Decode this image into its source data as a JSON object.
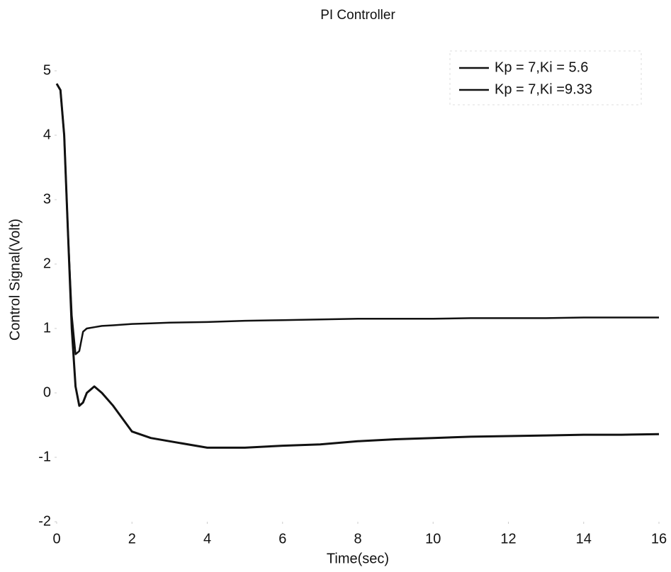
{
  "chart_data": {
    "type": "line",
    "title": "PI Controller",
    "x_label": "Time(sec)",
    "y_label": "Control Signal(Volt)",
    "x": [
      0,
      0.1,
      0.2,
      0.3,
      0.4,
      0.5,
      0.6,
      0.7,
      0.8,
      1.0,
      1.2,
      1.5,
      2,
      2.5,
      3,
      4,
      5,
      6,
      7,
      8,
      9,
      10,
      11,
      12,
      13,
      14,
      15,
      16
    ],
    "series": [
      {
        "name": "Kp = 7,Ki = 5.6",
        "color": "#111111",
        "values": [
          4.8,
          4.7,
          4.0,
          2.5,
          1.2,
          0.6,
          0.65,
          0.95,
          1.0,
          1.02,
          1.04,
          1.05,
          1.07,
          1.08,
          1.09,
          1.1,
          1.12,
          1.13,
          1.14,
          1.15,
          1.15,
          1.15,
          1.16,
          1.16,
          1.16,
          1.17,
          1.17,
          1.17
        ]
      },
      {
        "name": "Kp = 7,Ki =9.33",
        "color": "#111111",
        "values": [
          4.8,
          4.7,
          4.0,
          2.5,
          1.0,
          0.1,
          -0.2,
          -0.15,
          0.0,
          0.1,
          0.0,
          -0.2,
          -0.6,
          -0.7,
          -0.75,
          -0.85,
          -0.85,
          -0.82,
          -0.8,
          -0.75,
          -0.72,
          -0.7,
          -0.68,
          -0.67,
          -0.66,
          -0.65,
          -0.65,
          -0.64
        ]
      }
    ],
    "xlim": [
      0,
      16
    ],
    "xticks": [
      0,
      2,
      4,
      6,
      8,
      10,
      12,
      14,
      16
    ],
    "ylim": [
      -2,
      5
    ],
    "yticks": [
      -2,
      -1,
      0,
      1,
      2,
      3,
      4,
      5
    ],
    "grid": false,
    "legend": "upper right"
  }
}
